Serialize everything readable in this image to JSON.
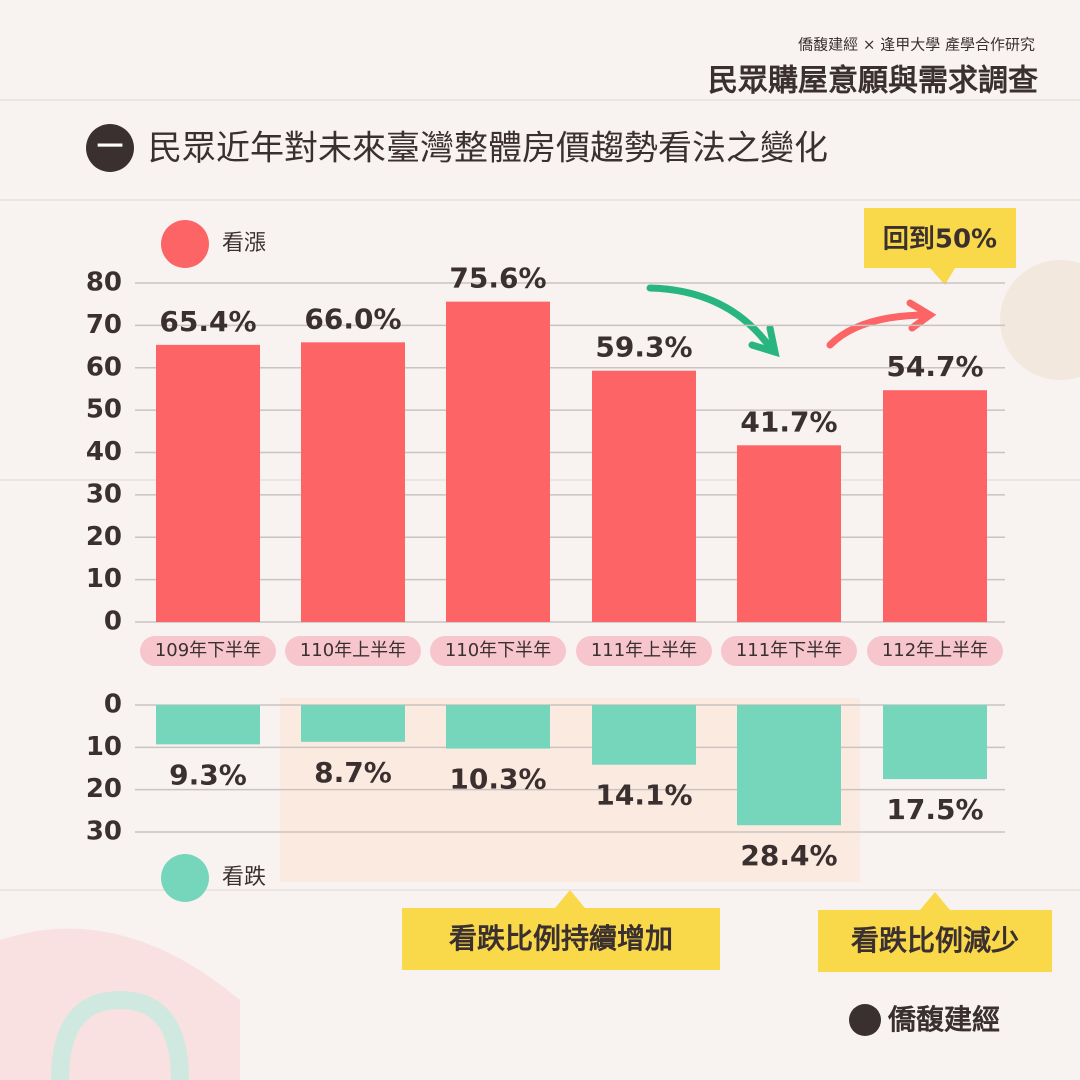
{
  "header": {
    "org": "僑馥建經 × 逢甲大學 產學合作研究",
    "title": "民眾購屋意願與需求調查",
    "section_number": "一",
    "section_title": "民眾近年對未來臺灣整體房價趨勢看法之變化"
  },
  "chart_data": [
    {
      "type": "bar",
      "categories": [
        "109年下半年",
        "110年上半年",
        "110年下半年",
        "111年上半年",
        "111年下半年",
        "112年上半年"
      ],
      "series": [
        {
          "name": "看漲",
          "color": "#fd6466",
          "values": [
            65.4,
            66.0,
            75.6,
            59.3,
            41.7,
            54.7
          ],
          "value_labels": [
            "65.4%",
            "66.0%",
            "75.6%",
            "59.3%",
            "41.7%",
            "54.7%"
          ]
        }
      ],
      "ylim": [
        0,
        80
      ],
      "yticks": [
        0,
        10,
        20,
        30,
        40,
        50,
        60,
        70,
        80
      ],
      "grid": true,
      "inverted": false,
      "annotations": [
        "回到50%"
      ]
    },
    {
      "type": "bar",
      "series": [
        {
          "name": "看跌",
          "color": "#76d6bb",
          "values": [
            9.3,
            8.7,
            10.3,
            14.1,
            28.4,
            17.5
          ],
          "value_labels": [
            "9.3%",
            "8.7%",
            "10.3%",
            "14.1%",
            "28.4%",
            "17.5%"
          ]
        }
      ],
      "ylim": [
        0,
        30
      ],
      "yticks": [
        0,
        10,
        20,
        30
      ],
      "grid": true,
      "inverted": true,
      "annotations": [
        "看跌比例持續增加",
        "看跌比例減少"
      ]
    }
  ],
  "footer": {
    "logo": "僑馥建經"
  }
}
